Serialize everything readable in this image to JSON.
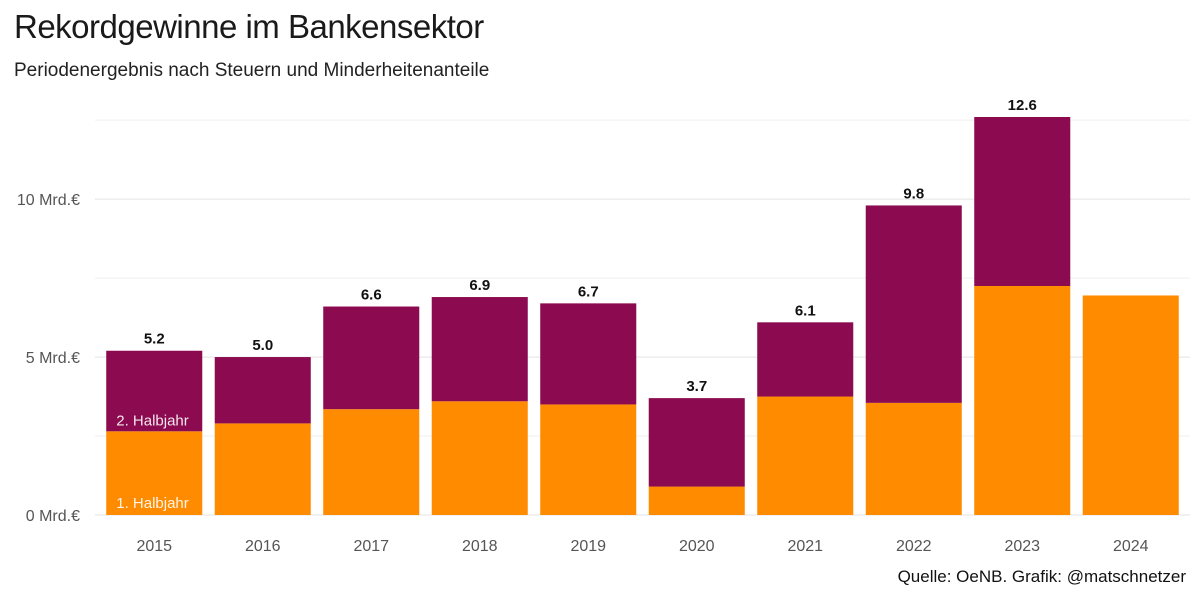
{
  "header": {
    "title": "Rekordgewinne im Bankensektor",
    "subtitle": "Periodenergebnis nach Steuern und Minderheitenanteile"
  },
  "footer": {
    "source": "Quelle: OeNB. Grafik: @matschnetzer"
  },
  "chart_data": {
    "type": "bar",
    "stacked": true,
    "title": "Rekordgewinne im Bankensektor",
    "subtitle": "Periodenergebnis nach Steuern und Minderheitenanteile",
    "categories": [
      "2015",
      "2016",
      "2017",
      "2018",
      "2019",
      "2020",
      "2021",
      "2022",
      "2023",
      "2024"
    ],
    "series": [
      {
        "name": "1. Halbjahr",
        "color": "#FF8C00",
        "values": [
          2.65,
          2.9,
          3.35,
          3.6,
          3.5,
          0.9,
          3.75,
          3.55,
          7.25,
          6.95
        ]
      },
      {
        "name": "2. Halbjahr",
        "color": "#8B0A50",
        "values": [
          2.55,
          2.1,
          3.25,
          3.3,
          3.2,
          2.8,
          2.35,
          6.25,
          5.35,
          null
        ]
      }
    ],
    "totals": [
      "5.2",
      "5.0",
      "6.6",
      "6.9",
      "6.7",
      "3.7",
      "6.1",
      "9.8",
      "12.6",
      null
    ],
    "yticks": [
      {
        "value": 0,
        "label": "0 Mrd.€"
      },
      {
        "value": 5,
        "label": "5 Mrd.€"
      },
      {
        "value": 10,
        "label": "10 Mrd.€"
      }
    ],
    "ylim": [
      0,
      12.6
    ],
    "grid": true,
    "legend": "inline labels on 2015 bar"
  }
}
